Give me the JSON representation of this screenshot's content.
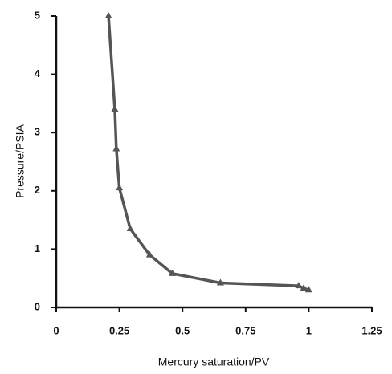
{
  "chart_data": {
    "type": "line",
    "x_label": "Mercury saturation/PV",
    "y_label": "Pressure/PSIA",
    "x": [
      0.207,
      0.232,
      0.238,
      0.25,
      0.293,
      0.37,
      0.46,
      0.65,
      0.96,
      0.98,
      1.0
    ],
    "series": [
      {
        "color": "#555555",
        "values": [
          5.0,
          3.4,
          2.72,
          2.05,
          1.35,
          0.9,
          0.58,
          0.42,
          0.37,
          0.33,
          0.3
        ]
      }
    ],
    "xlim": [
      0,
      1.25
    ],
    "xticks": [
      0,
      0.25,
      0.5,
      0.75,
      1,
      1.25
    ],
    "ylim": [
      0,
      5
    ],
    "yticks": [
      0,
      1,
      2,
      3,
      4,
      5
    ],
    "grid": false
  }
}
